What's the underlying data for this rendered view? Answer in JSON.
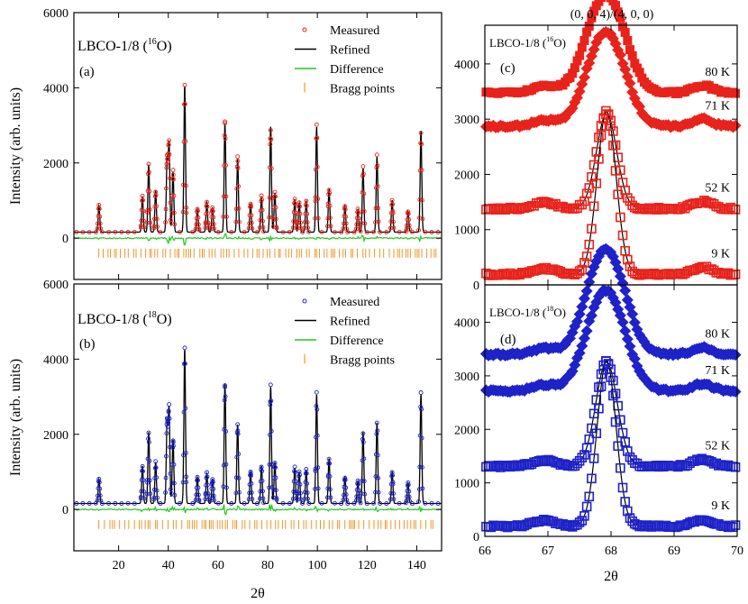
{
  "colors": {
    "red": "#e8231b",
    "blue": "#1e22c8",
    "green": "#22c722",
    "black": "#000000",
    "orange": "#f0962a"
  },
  "figure": {
    "x_label": "2θ",
    "right_title": "(0, 0, 4)/(4, 0, 0)"
  },
  "chart_data": [
    {
      "id": "a",
      "type": "line",
      "panel_label": "(a)",
      "sample": "LBCO-1/8 (",
      "isotope_sup": "16",
      "isotope_el": "O)",
      "ylabel": "Intensity (arb. units)",
      "xlim": [
        2,
        150
      ],
      "ylim": [
        -1100,
        6000
      ],
      "xticks": [
        20,
        40,
        60,
        80,
        100,
        120,
        140
      ],
      "yticks": [
        0,
        2000,
        4000,
        6000
      ],
      "legend": [
        "Measured",
        "Refined",
        "Difference",
        "Bragg points"
      ],
      "background": 160,
      "bragg_y": -400,
      "peaks": [
        [
          12.1,
          700
        ],
        [
          29.6,
          950
        ],
        [
          32.1,
          1800
        ],
        [
          34.9,
          1100
        ],
        [
          39.5,
          1900
        ],
        [
          40.3,
          2350
        ],
        [
          41.9,
          1600
        ],
        [
          46.6,
          3900
        ],
        [
          51.7,
          620
        ],
        [
          55.5,
          800
        ],
        [
          57.8,
          650
        ],
        [
          62.8,
          2900
        ],
        [
          67.9,
          1950
        ],
        [
          73.1,
          750
        ],
        [
          77.5,
          950
        ],
        [
          81.2,
          2800
        ],
        [
          82.9,
          1050
        ],
        [
          90.9,
          880
        ],
        [
          92.7,
          780
        ],
        [
          95.5,
          820
        ],
        [
          99.7,
          2800
        ],
        [
          104.7,
          1150
        ],
        [
          111.1,
          700
        ],
        [
          116.3,
          600
        ],
        [
          118.4,
          1700
        ],
        [
          124.0,
          2000
        ],
        [
          130.1,
          850
        ],
        [
          136.5,
          550
        ],
        [
          141.7,
          2700
        ]
      ],
      "measured_color": "red"
    },
    {
      "id": "b",
      "type": "line",
      "panel_label": "(b)",
      "sample": "LBCO-1/8 (",
      "isotope_sup": "18",
      "isotope_el": "O)",
      "ylabel": "Intensity (arb. units)",
      "xlim": [
        2,
        150
      ],
      "ylim": [
        -1100,
        6000
      ],
      "xticks": [
        20,
        40,
        60,
        80,
        100,
        120,
        140
      ],
      "yticks": [
        0,
        2000,
        4000,
        6000
      ],
      "legend": [
        "Measured",
        "Refined",
        "Difference",
        "Bragg points"
      ],
      "background": 160,
      "bragg_y": -400,
      "peaks": [
        [
          12.1,
          650
        ],
        [
          29.6,
          1000
        ],
        [
          32.1,
          1900
        ],
        [
          34.9,
          1100
        ],
        [
          39.5,
          2100
        ],
        [
          40.3,
          2500
        ],
        [
          41.9,
          1700
        ],
        [
          46.6,
          4100
        ],
        [
          51.7,
          700
        ],
        [
          55.5,
          800
        ],
        [
          57.8,
          650
        ],
        [
          62.8,
          3200
        ],
        [
          67.9,
          2100
        ],
        [
          73.1,
          850
        ],
        [
          77.5,
          1000
        ],
        [
          81.2,
          3100
        ],
        [
          82.9,
          1100
        ],
        [
          90.9,
          950
        ],
        [
          92.7,
          850
        ],
        [
          95.5,
          900
        ],
        [
          99.7,
          2900
        ],
        [
          104.7,
          1200
        ],
        [
          111.1,
          700
        ],
        [
          116.3,
          600
        ],
        [
          118.4,
          1900
        ],
        [
          124.0,
          2150
        ],
        [
          130.1,
          850
        ],
        [
          136.5,
          550
        ],
        [
          141.7,
          2900
        ]
      ],
      "measured_color": "blue"
    },
    {
      "id": "c",
      "type": "scatter",
      "panel_label": "(c)",
      "sample": "LBCO-1/8 (",
      "isotope_sup": "16",
      "isotope_el": "O)",
      "xlim": [
        66,
        70
      ],
      "ylim": [
        0,
        4700
      ],
      "xticks": [
        66,
        67,
        68,
        69,
        70
      ],
      "yticks": [
        0,
        1000,
        2000,
        3000,
        4000
      ],
      "marker_color": "red",
      "series": [
        {
          "name": "80 K",
          "base": 3480,
          "marker": "square-filled",
          "peaks": [
            [
              67.78,
              1000
            ],
            [
              68.05,
              1050
            ]
          ],
          "sigma": 0.26,
          "fit": false
        },
        {
          "name": "71 K",
          "base": 2870,
          "marker": "diamond-filled",
          "peaks": [
            [
              67.78,
              950
            ],
            [
              68.05,
              1000
            ]
          ],
          "sigma": 0.26,
          "fit": false
        },
        {
          "name": "52 K",
          "base": 1380,
          "marker": "square-open",
          "peaks": [
            [
              67.93,
              1720
            ]
          ],
          "sigma": 0.16,
          "fit": true
        },
        {
          "name": "9 K",
          "base": 190,
          "marker": "square-open",
          "peaks": [
            [
              67.93,
              2950
            ]
          ],
          "sigma": 0.15,
          "fit": true
        }
      ]
    },
    {
      "id": "d",
      "type": "scatter",
      "panel_label": "(d)",
      "sample": "LBCO-1/8 (",
      "isotope_sup": "18",
      "isotope_el": "O)",
      "xlim": [
        66,
        70
      ],
      "ylim": [
        0,
        4700
      ],
      "xticks": [
        66,
        67,
        68,
        69,
        70
      ],
      "yticks": [
        0,
        1000,
        2000,
        3000,
        4000
      ],
      "marker_color": "blue",
      "series": [
        {
          "name": "80 K",
          "base": 3400,
          "marker": "diamond-filled",
          "peaks": [
            [
              67.78,
              1100
            ],
            [
              68.05,
              1150
            ]
          ],
          "sigma": 0.26,
          "fit": false
        },
        {
          "name": "71 K",
          "base": 2720,
          "marker": "diamond-filled",
          "peaks": [
            [
              67.78,
              1050
            ],
            [
              68.05,
              1100
            ]
          ],
          "sigma": 0.26,
          "fit": false
        },
        {
          "name": "52 K",
          "base": 1310,
          "marker": "square-open",
          "peaks": [
            [
              67.93,
              1950
            ]
          ],
          "sigma": 0.17,
          "fit": true
        },
        {
          "name": "9 K",
          "base": 190,
          "marker": "square-open",
          "peaks": [
            [
              67.93,
              3080
            ]
          ],
          "sigma": 0.15,
          "fit": true
        }
      ]
    }
  ]
}
